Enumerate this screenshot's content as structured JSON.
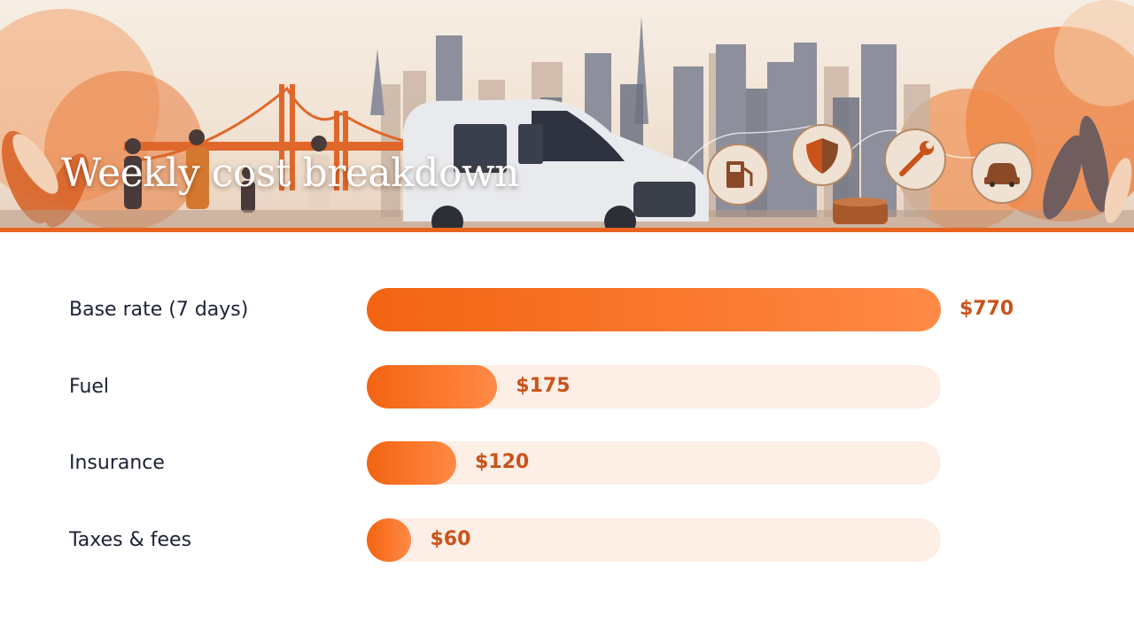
{
  "header": {
    "title": "Weekly cost breakdown",
    "illustration": [
      "golden-gate-bridge",
      "city-skyline",
      "travelers",
      "cargo-van",
      "fuel-icon",
      "shield-icon",
      "wrench-icon",
      "car-icon"
    ]
  },
  "colors": {
    "accent": "#e8641e",
    "bar": "#f26412",
    "track": "#fdeee6",
    "value_text": "#c9531a",
    "label_text": "#1c2233"
  },
  "chart_data": {
    "type": "bar",
    "orientation": "horizontal",
    "categories": [
      "Base rate (7 days)",
      "Fuel",
      "Insurance",
      "Taxes & fees"
    ],
    "values": [
      770,
      175,
      120,
      60
    ],
    "value_labels": [
      "$770",
      "$175",
      "$120",
      "$60"
    ],
    "xlim": [
      0,
      770
    ],
    "title": "Weekly cost breakdown",
    "grid": false
  }
}
